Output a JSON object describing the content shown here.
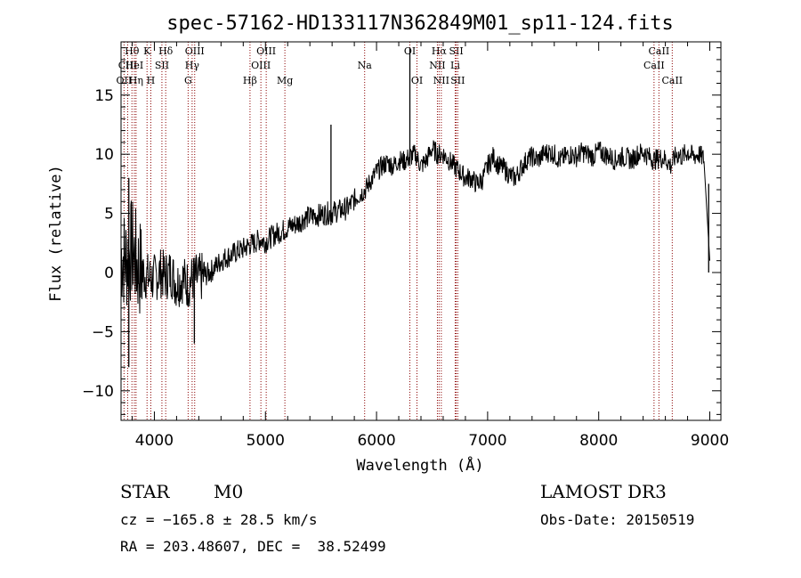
{
  "chart_data": {
    "type": "line",
    "title": "spec-57162-HD133117N362849M01_sp11-124.fits",
    "xlabel": "Wavelength (Å)",
    "ylabel": "Flux (relative)",
    "xlim": [
      3700,
      9100
    ],
    "ylim": [
      -12.5,
      19.5
    ],
    "x_ticks": [
      4000,
      5000,
      6000,
      7000,
      8000,
      9000
    ],
    "y_ticks": [
      -10,
      -5,
      0,
      5,
      10,
      15
    ],
    "x_tick_labels": [
      "4000",
      "5000",
      "6000",
      "7000",
      "8000",
      "9000"
    ],
    "y_tick_labels": [
      "−10",
      "−5",
      "0",
      "5",
      "10",
      "15"
    ],
    "series": [
      {
        "name": "flux",
        "x": [
          3700,
          3750,
          3800,
          3850,
          3900,
          3950,
          4000,
          4050,
          4100,
          4150,
          4200,
          4250,
          4300,
          4350,
          4400,
          4450,
          4500,
          4550,
          4600,
          4650,
          4700,
          4750,
          4800,
          4850,
          4900,
          4950,
          5000,
          5050,
          5100,
          5150,
          5200,
          5250,
          5300,
          5350,
          5400,
          5450,
          5500,
          5550,
          5600,
          5650,
          5700,
          5750,
          5800,
          5850,
          5900,
          5950,
          6000,
          6050,
          6100,
          6150,
          6200,
          6250,
          6300,
          6350,
          6400,
          6450,
          6500,
          6550,
          6600,
          6650,
          6700,
          6750,
          6800,
          6850,
          6900,
          6950,
          7000,
          7050,
          7100,
          7150,
          7200,
          7250,
          7300,
          7350,
          7400,
          7450,
          7500,
          7550,
          7600,
          7650,
          7700,
          7750,
          7800,
          7850,
          7900,
          7950,
          8000,
          8050,
          8100,
          8150,
          8200,
          8250,
          8300,
          8350,
          8400,
          8450,
          8500,
          8550,
          8600,
          8650,
          8700,
          8750,
          8800,
          8850,
          8900,
          8950,
          9000
        ],
        "y": [
          1.5,
          1.0,
          2.0,
          0.5,
          0.0,
          -0.5,
          -0.5,
          0.0,
          -0.3,
          0.0,
          -1.0,
          -0.5,
          -1.0,
          -0.5,
          -0.5,
          -0.3,
          0.0,
          0.5,
          1.0,
          1.3,
          1.5,
          1.8,
          2.0,
          2.3,
          2.5,
          2.8,
          2.6,
          3.0,
          3.3,
          3.5,
          3.8,
          4.0,
          4.2,
          4.6,
          4.7,
          4.8,
          4.9,
          5.0,
          5.1,
          5.2,
          5.3,
          5.5,
          6.2,
          6.6,
          7.0,
          7.8,
          8.5,
          9.0,
          9.3,
          9.0,
          9.5,
          9.4,
          9.8,
          10.0,
          9.0,
          9.5,
          10.5,
          10.0,
          10.0,
          9.5,
          9.0,
          8.5,
          8.0,
          8.0,
          7.5,
          7.8,
          9.0,
          9.8,
          9.0,
          8.8,
          8.2,
          8.0,
          8.8,
          9.5,
          9.8,
          9.5,
          10.0,
          10.2,
          10.0,
          9.5,
          9.8,
          10.0,
          9.8,
          10.2,
          10.0,
          9.8,
          10.3,
          10.0,
          9.8,
          9.5,
          9.8,
          9.7,
          9.5,
          10.0,
          10.2,
          9.8,
          9.5,
          9.7,
          9.6,
          9.0,
          10.0,
          9.8,
          10.2,
          9.8,
          10.0,
          9.6,
          1.0
        ],
        "color": "#000000"
      }
    ],
    "spikes": [
      {
        "x": 3770,
        "y_min": -8,
        "y_max": 8
      },
      {
        "x": 4360,
        "y_min": -6,
        "y_max": 0
      },
      {
        "x": 5590,
        "y_min": 4,
        "y_max": 12.5
      },
      {
        "x": 6300,
        "y_min": 9,
        "y_max": 19
      },
      {
        "x": 8990,
        "y_min": 0,
        "y_max": 7.5
      }
    ],
    "line_markers": [
      {
        "label": "Hθ",
        "x": 3798,
        "row": 1
      },
      {
        "label": "OII",
        "x": 3727,
        "row": 3
      },
      {
        "label": "CIII",
        "x": 3760,
        "row": 2
      },
      {
        "label": "HeI",
        "x": 3820,
        "row": 2
      },
      {
        "label": "Hη",
        "x": 3835,
        "row": 3
      },
      {
        "label": "K",
        "x": 3934,
        "row": 1
      },
      {
        "label": "H",
        "x": 3968,
        "row": 3
      },
      {
        "label": "SII",
        "x": 4068,
        "row": 2
      },
      {
        "label": "Hδ",
        "x": 4102,
        "row": 1
      },
      {
        "label": "OIII",
        "x": 4363,
        "row": 1
      },
      {
        "label": "Hγ",
        "x": 4340,
        "row": 2
      },
      {
        "label": "G",
        "x": 4304,
        "row": 3
      },
      {
        "label": "Hβ",
        "x": 4861,
        "row": 3
      },
      {
        "label": "OIII",
        "x": 5007,
        "row": 1
      },
      {
        "label": "OIII",
        "x": 4959,
        "row": 2
      },
      {
        "label": "Mg",
        "x": 5175,
        "row": 3
      },
      {
        "label": "Na",
        "x": 5893,
        "row": 2
      },
      {
        "label": "OI",
        "x": 6300,
        "row": 1
      },
      {
        "label": "OI",
        "x": 6364,
        "row": 3
      },
      {
        "label": "Hα",
        "x": 6563,
        "row": 1
      },
      {
        "label": "NII",
        "x": 6548,
        "row": 2
      },
      {
        "label": "NII",
        "x": 6583,
        "row": 3
      },
      {
        "label": "SII",
        "x": 6717,
        "row": 1
      },
      {
        "label": "Li",
        "x": 6708,
        "row": 2
      },
      {
        "label": "SII",
        "x": 6731,
        "row": 3
      },
      {
        "label": "CaII",
        "x": 8542,
        "row": 1
      },
      {
        "label": "CaII",
        "x": 8498,
        "row": 2
      },
      {
        "label": "CaII",
        "x": 8662,
        "row": 3
      }
    ],
    "marker_color": "#8b0000",
    "noise": {
      "seed": 7,
      "amplitude": 0.9
    }
  },
  "footer": {
    "object_class": "STAR",
    "subclass": "M0",
    "survey": "LAMOST DR3",
    "redshift_line": "cz = −165.8 ± 28.5 km/s",
    "obs_date": "Obs-Date: 20150519",
    "coords_line": "RA = 203.48607, DEC =  38.52499"
  }
}
